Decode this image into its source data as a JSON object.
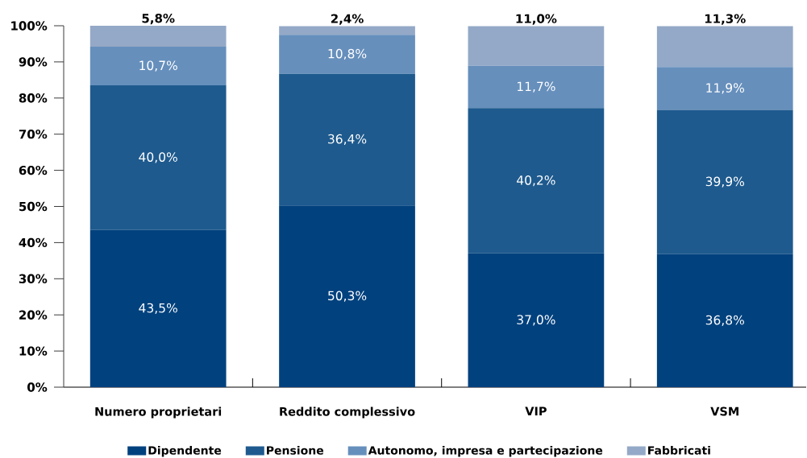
{
  "chart_data": {
    "type": "bar",
    "stacked": true,
    "legend": "bottom",
    "categories": [
      "Numero proprietari",
      "Reddito complessivo",
      "VIP",
      "VSM"
    ],
    "ylim": [
      0,
      100
    ],
    "yticks": [
      {
        "value": 0,
        "label": "0%"
      },
      {
        "value": 10,
        "label": "10%"
      },
      {
        "value": 20,
        "label": "20%"
      },
      {
        "value": 30,
        "label": "30%"
      },
      {
        "value": 40,
        "label": "40%"
      },
      {
        "value": 50,
        "label": "50%"
      },
      {
        "value": 60,
        "label": "60%"
      },
      {
        "value": 70,
        "label": "70%"
      },
      {
        "value": 80,
        "label": "80%"
      },
      {
        "value": 90,
        "label": "90%"
      },
      {
        "value": 100,
        "label": "100%"
      }
    ],
    "series": [
      {
        "name": "Dipendente",
        "color": "#00417e",
        "values": [
          43.5,
          50.3,
          37.0,
          36.8
        ],
        "value_labels": [
          "43,5%",
          "50,3%",
          "37,0%",
          "36,8%"
        ]
      },
      {
        "name": "Pensione",
        "color": "#1e5a8e",
        "values": [
          40.0,
          36.4,
          40.2,
          39.9
        ],
        "value_labels": [
          "40,0%",
          "36,4%",
          "40,2%",
          "39,9%"
        ]
      },
      {
        "name": "Autonomo, impresa e partecipazione",
        "color": "#668fbc",
        "values": [
          10.7,
          10.8,
          11.7,
          11.9
        ],
        "value_labels": [
          "10,7%",
          "10,8%",
          "11,7%",
          "11,9%"
        ]
      },
      {
        "name": "Fabbricati",
        "color": "#94a9c7",
        "values": [
          5.8,
          2.4,
          11.0,
          11.3
        ],
        "value_labels": [
          "5,8%",
          "2,4%",
          "11,0%",
          "11,3%"
        ]
      }
    ]
  }
}
